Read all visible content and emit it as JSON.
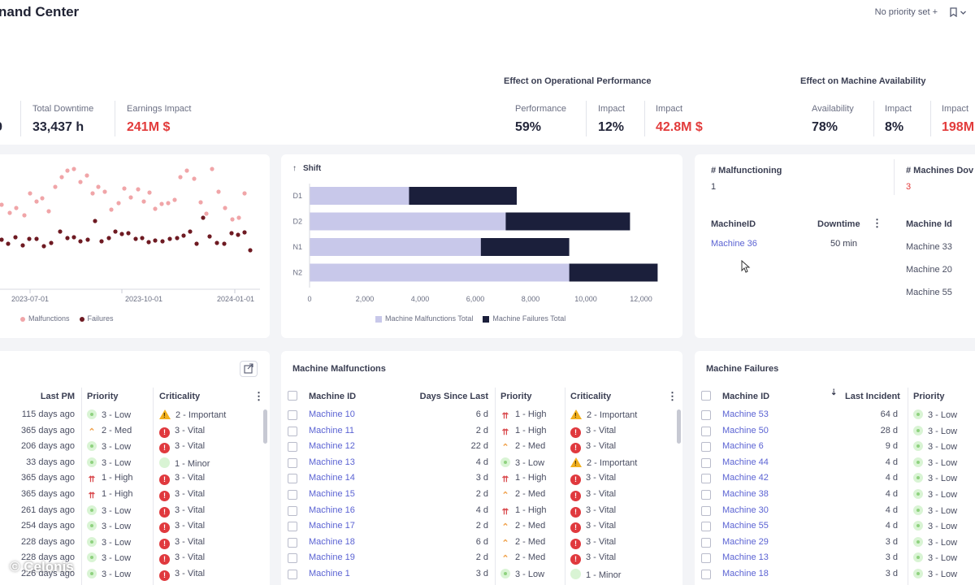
{
  "header": {
    "title": "nand Center",
    "priority_label": "No priority set +",
    "bookmark_icon": "bookmark-icon"
  },
  "sections": {
    "operational": "Effect on Operational Performance",
    "availability": "Effect on Machine Availability"
  },
  "kpis": [
    {
      "label": "",
      "value": "9"
    },
    {
      "label": "Total Downtime",
      "value": "33,437 h"
    },
    {
      "label": "Earnings Impact",
      "value": "241M $"
    },
    {
      "label": "Performance",
      "value": "59%"
    },
    {
      "label": "Impact",
      "value": "12%"
    },
    {
      "label": "Impact",
      "value": "42.8M $"
    },
    {
      "label": "Availability",
      "value": "78%"
    },
    {
      "label": "Impact",
      "value": "8%"
    },
    {
      "label": "Impact",
      "value": "198M"
    }
  ],
  "scatter": {
    "x_ticks": [
      "2023-07-01",
      "2023-10-01",
      "2024-01-01"
    ],
    "legend": [
      "Malfunctions",
      "Failures"
    ],
    "colors": {
      "malfunctions": "#f0a5a8",
      "failures": "#6e1a22"
    }
  },
  "chart_data": {
    "type": "bar",
    "title": "Shift",
    "orientation": "horizontal",
    "stacked": true,
    "categories": [
      "D1",
      "D2",
      "N1",
      "N2"
    ],
    "series": [
      {
        "name": "Machine Malfunctions Total",
        "values": [
          3600,
          7100,
          6200,
          9400
        ],
        "color": "#c8c8ea"
      },
      {
        "name": "Machine Failures Total",
        "values": [
          3900,
          4500,
          3200,
          3200
        ],
        "color": "#1b1f3b"
      }
    ],
    "x_ticks": [
      "0",
      "2,000",
      "4,000",
      "6,000",
      "8,000",
      "10,000",
      "12,000"
    ],
    "xlim": [
      0,
      12000
    ],
    "legend_position": "bottom"
  },
  "mini": {
    "malfunctioning_label": "# Malfunctioning",
    "malfunctioning_value": "1",
    "down_label": "# Machines Dov",
    "down_value": "3",
    "col_machine": "MachineID",
    "col_downtime": "Downtime",
    "row_machine": "Machine 36",
    "row_downtime": "50 min",
    "col2_machine": "Machine Id",
    "right_machines": [
      "Machine 33",
      "Machine 20",
      "Machine 55"
    ]
  },
  "table_left": {
    "headers": {
      "last_pm": "Last PM",
      "priority": "Priority",
      "criticality": "Criticality"
    },
    "rows": [
      {
        "last_pm": "115 days ago",
        "priority": "3 - Low",
        "p": "low",
        "criticality": "2 - Important",
        "c": "important"
      },
      {
        "last_pm": "365 days ago",
        "priority": "2 - Med",
        "p": "med",
        "criticality": "3 - Vital",
        "c": "vital"
      },
      {
        "last_pm": "206 days ago",
        "priority": "3 - Low",
        "p": "low",
        "criticality": "3 - Vital",
        "c": "vital"
      },
      {
        "last_pm": "33 days ago",
        "priority": "3 - Low",
        "p": "low",
        "criticality": "1 - Minor",
        "c": "minor"
      },
      {
        "last_pm": "365 days ago",
        "priority": "1 - High",
        "p": "high",
        "criticality": "3 - Vital",
        "c": "vital"
      },
      {
        "last_pm": "365 days ago",
        "priority": "1 - High",
        "p": "high",
        "criticality": "3 - Vital",
        "c": "vital"
      },
      {
        "last_pm": "261 days ago",
        "priority": "3 - Low",
        "p": "low",
        "criticality": "3 - Vital",
        "c": "vital"
      },
      {
        "last_pm": "254 days ago",
        "priority": "3 - Low",
        "p": "low",
        "criticality": "3 - Vital",
        "c": "vital"
      },
      {
        "last_pm": "228 days ago",
        "priority": "3 - Low",
        "p": "low",
        "criticality": "3 - Vital",
        "c": "vital"
      },
      {
        "last_pm": "228 days ago",
        "priority": "3 - Low",
        "p": "low",
        "criticality": "3 - Vital",
        "c": "vital"
      },
      {
        "last_pm": "226 days ago",
        "priority": "3 - Low",
        "p": "low",
        "criticality": "3 - Vital",
        "c": "vital"
      }
    ]
  },
  "table_mid": {
    "title": "Machine Malfunctions",
    "headers": {
      "machine": "Machine ID",
      "days": "Days Since Last",
      "priority": "Priority",
      "criticality": "Criticality"
    },
    "rows": [
      {
        "machine": "Machine 10",
        "days": "6 d",
        "priority": "1 - High",
        "p": "high",
        "criticality": "2 - Important",
        "c": "important"
      },
      {
        "machine": "Machine 11",
        "days": "2 d",
        "priority": "1 - High",
        "p": "high",
        "criticality": "3 - Vital",
        "c": "vital"
      },
      {
        "machine": "Machine 12",
        "days": "22 d",
        "priority": "2 - Med",
        "p": "med",
        "criticality": "3 - Vital",
        "c": "vital"
      },
      {
        "machine": "Machine 13",
        "days": "4 d",
        "priority": "3 - Low",
        "p": "low",
        "criticality": "2 - Important",
        "c": "important"
      },
      {
        "machine": "Machine 14",
        "days": "3 d",
        "priority": "1 - High",
        "p": "high",
        "criticality": "3 - Vital",
        "c": "vital"
      },
      {
        "machine": "Machine 15",
        "days": "2 d",
        "priority": "2 - Med",
        "p": "med",
        "criticality": "3 - Vital",
        "c": "vital"
      },
      {
        "machine": "Machine 16",
        "days": "4 d",
        "priority": "1 - High",
        "p": "high",
        "criticality": "3 - Vital",
        "c": "vital"
      },
      {
        "machine": "Machine 17",
        "days": "2 d",
        "priority": "2 - Med",
        "p": "med",
        "criticality": "3 - Vital",
        "c": "vital"
      },
      {
        "machine": "Machine 18",
        "days": "6 d",
        "priority": "2 - Med",
        "p": "med",
        "criticality": "3 - Vital",
        "c": "vital"
      },
      {
        "machine": "Machine 19",
        "days": "2 d",
        "priority": "2 - Med",
        "p": "med",
        "criticality": "3 - Vital",
        "c": "vital"
      },
      {
        "machine": "Machine 1",
        "days": "3 d",
        "priority": "3 - Low",
        "p": "low",
        "criticality": "1 - Minor",
        "c": "minor"
      }
    ]
  },
  "table_right": {
    "title": "Machine Failures",
    "headers": {
      "machine": "Machine ID",
      "last": "Last Incident",
      "priority": "Priority"
    },
    "rows": [
      {
        "machine": "Machine 53",
        "last": "64 d",
        "priority": "3 - Low"
      },
      {
        "machine": "Machine 50",
        "last": "28 d",
        "priority": "3 - Low"
      },
      {
        "machine": "Machine 6",
        "last": "9 d",
        "priority": "3 - Low"
      },
      {
        "machine": "Machine 44",
        "last": "4 d",
        "priority": "3 - Low"
      },
      {
        "machine": "Machine 42",
        "last": "4 d",
        "priority": "3 - Low"
      },
      {
        "machine": "Machine 38",
        "last": "4 d",
        "priority": "3 - Low"
      },
      {
        "machine": "Machine 30",
        "last": "4 d",
        "priority": "3 - Low"
      },
      {
        "machine": "Machine 55",
        "last": "4 d",
        "priority": "3 - Low"
      },
      {
        "machine": "Machine 29",
        "last": "3 d",
        "priority": "3 - Low"
      },
      {
        "machine": "Machine 13",
        "last": "3 d",
        "priority": "3 - Low"
      },
      {
        "machine": "Machine 18",
        "last": "3 d",
        "priority": "3 - Low"
      }
    ]
  },
  "watermark": "© Celonis"
}
